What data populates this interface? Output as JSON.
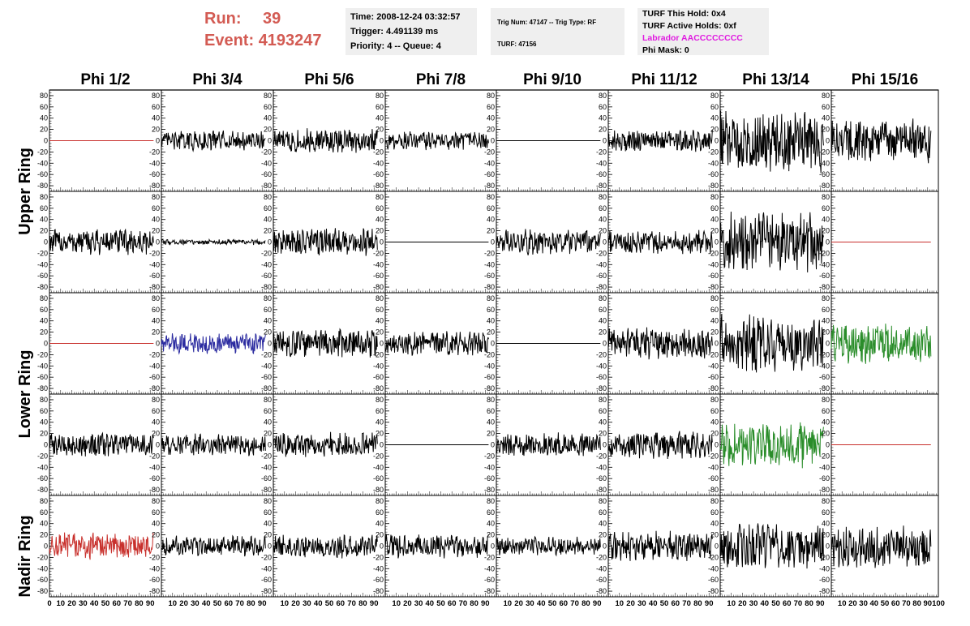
{
  "header": {
    "run_label": "Run:",
    "run_value": "39",
    "event_label": "Event:",
    "event_value": "4193247",
    "time": "Time: 2008-12-24 03:32:57",
    "trigger": "Trigger: 4.491139 ms",
    "priority": "Priority: 4 -- Queue: 4",
    "trig_num": "Trig Num: 47147 -- Trig Type: RF",
    "turf": "TURF: 47156",
    "turf_this_hold": "TURF This Hold: 0x4",
    "turf_active_holds": "TURF Active Holds: 0xf",
    "labrador": "Labrador AACCCCCCCC",
    "phi_mask": "Phi Mask: 0"
  },
  "columns": [
    "Phi 1/2",
    "Phi 3/4",
    "Phi 5/6",
    "Phi 7/8",
    "Phi 9/10",
    "Phi 11/12",
    "Phi 13/14",
    "Phi 15/16"
  ],
  "ring_labels": [
    "Upper Ring",
    "Lower Ring",
    "Nadir Ring"
  ],
  "y_ticks": [
    "80",
    "60",
    "40",
    "20",
    "0",
    "-20",
    "-40",
    "-60",
    "-80"
  ],
  "x_tick_row": [
    "0",
    "10",
    "20",
    "30",
    "40",
    "50",
    "60",
    "70",
    "80",
    "90",
    "10",
    "20",
    "30",
    "40",
    "50",
    "60",
    "70",
    "80",
    "90",
    "10",
    "20",
    "30",
    "40",
    "50",
    "60",
    "70",
    "80",
    "90",
    "10",
    "20",
    "30",
    "40",
    "50",
    "60",
    "70",
    "80",
    "90",
    "10",
    "20",
    "30",
    "40",
    "50",
    "60",
    "70",
    "80",
    "90",
    "10",
    "20",
    "30",
    "40",
    "50",
    "60",
    "70",
    "80",
    "90",
    "10",
    "20",
    "30",
    "40",
    "50",
    "60",
    "70",
    "80",
    "90",
    "10",
    "20",
    "30",
    "40",
    "50",
    "60",
    "70",
    "80",
    "90",
    "100"
  ],
  "colors": {
    "run_text": "#d35b53",
    "labrador_text": "#e01be0",
    "info_bg": "#efefef",
    "trace_black": "#000000",
    "trace_red": "#c8302c",
    "trace_blue": "#2b2ba0",
    "trace_green": "#2a8d2a"
  },
  "waveforms": [
    [
      {
        "color": "red",
        "amp": 0
      },
      {
        "color": "black",
        "amp": 11
      },
      {
        "color": "black",
        "amp": 13
      },
      {
        "color": "black",
        "amp": 10
      },
      {
        "color": "black",
        "amp": 0
      },
      {
        "color": "black",
        "amp": 12
      },
      {
        "color": "black",
        "amp": 34
      },
      {
        "color": "black",
        "amp": 24
      }
    ],
    [
      {
        "color": "black",
        "amp": 14
      },
      {
        "color": "black",
        "amp": 3
      },
      {
        "color": "black",
        "amp": 15
      },
      {
        "color": "black",
        "amp": 0
      },
      {
        "color": "black",
        "amp": 14
      },
      {
        "color": "black",
        "amp": 14
      },
      {
        "color": "black",
        "amp": 34
      },
      {
        "color": "red",
        "amp": 0
      }
    ],
    [
      {
        "color": "red",
        "amp": 0
      },
      {
        "color": "blue",
        "amp": 11
      },
      {
        "color": "black",
        "amp": 15
      },
      {
        "color": "black",
        "amp": 13
      },
      {
        "color": "black",
        "amp": 0
      },
      {
        "color": "black",
        "amp": 17
      },
      {
        "color": "black",
        "amp": 32
      },
      {
        "color": "green",
        "amp": 22
      }
    ],
    [
      {
        "color": "black",
        "amp": 13
      },
      {
        "color": "black",
        "amp": 12
      },
      {
        "color": "black",
        "amp": 14
      },
      {
        "color": "black",
        "amp": 0
      },
      {
        "color": "black",
        "amp": 13
      },
      {
        "color": "black",
        "amp": 15
      },
      {
        "color": "green",
        "amp": 25
      },
      {
        "color": "red",
        "amp": 0
      }
    ],
    [
      {
        "color": "red",
        "amp": 15
      },
      {
        "color": "black",
        "amp": 11
      },
      {
        "color": "black",
        "amp": 13
      },
      {
        "color": "black",
        "amp": 13
      },
      {
        "color": "black",
        "amp": 10
      },
      {
        "color": "black",
        "amp": 16
      },
      {
        "color": "black",
        "amp": 25
      },
      {
        "color": "black",
        "amp": 24
      }
    ]
  ]
}
